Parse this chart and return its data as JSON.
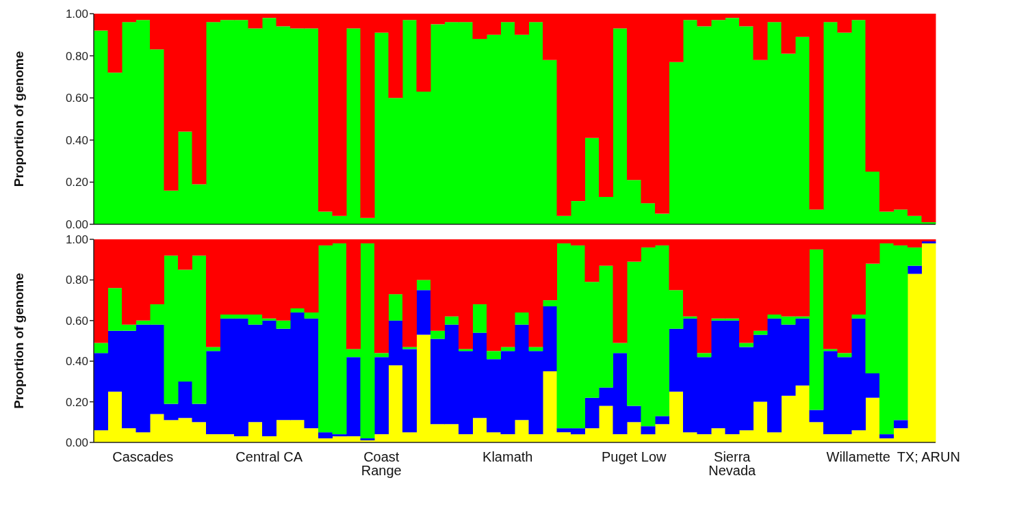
{
  "chart_data": [
    {
      "type": "bar",
      "stacked": true,
      "ylabel": "Proportion of genome",
      "tick_labels": "y",
      "categories": [
        null,
        null,
        null,
        null,
        null,
        null,
        null,
        null,
        null,
        null,
        null,
        null,
        null,
        null,
        null,
        null,
        null,
        null,
        null,
        null,
        null,
        null,
        null,
        null,
        null,
        null,
        null,
        null,
        null,
        null,
        null,
        null,
        null,
        null,
        null,
        null,
        null,
        null,
        null,
        null,
        null,
        null,
        null,
        null,
        null,
        null,
        null,
        null,
        null,
        null,
        null,
        null,
        null,
        null,
        null,
        null,
        null,
        null,
        null,
        null
      ],
      "ylim": [
        0,
        1
      ],
      "yticks": [
        {
          "value": 0,
          "label": "0.00"
        },
        {
          "value": 0.2,
          "label": "0.20"
        },
        {
          "value": 0.4,
          "label": "0.40"
        },
        {
          "value": 0.6,
          "label": "0.60"
        },
        {
          "value": 0.8,
          "label": "0.80"
        },
        {
          "value": 1,
          "label": "1.00"
        }
      ],
      "series": [
        {
          "color": "#00ff00",
          "values": [
            0.92,
            0.72,
            0.96,
            0.97,
            0.83,
            0.16,
            0.44,
            0.19,
            0.96,
            0.97,
            0.97,
            0.93,
            0.98,
            0.94,
            0.93,
            0.93,
            0.06,
            0.04,
            0.93,
            0.03,
            0.91,
            0.6,
            0.97,
            0.63,
            0.95,
            0.96,
            0.96,
            0.88,
            0.9,
            0.96,
            0.9,
            0.96,
            0.78,
            0.04,
            0.11,
            0.41,
            0.13,
            0.93,
            0.21,
            0.1,
            0.05,
            0.77,
            0.97,
            0.94,
            0.97,
            0.98,
            0.94,
            0.78,
            0.96,
            0.81,
            0.89,
            0.07,
            0.96,
            0.91,
            0.97,
            0.25,
            0.06,
            0.07,
            0.04,
            0.01
          ]
        },
        {
          "color": "#ff0000",
          "values": [
            0.08,
            0.28,
            0.04,
            0.03,
            0.17,
            0.84,
            0.56,
            0.81,
            0.04,
            0.03,
            0.03,
            0.07,
            0.02,
            0.06,
            0.07,
            0.07,
            0.94,
            0.96,
            0.07,
            0.97,
            0.09,
            0.4,
            0.03,
            0.37,
            0.05,
            0.04,
            0.04,
            0.12,
            0.1,
            0.04,
            0.1,
            0.04,
            0.22,
            0.96,
            0.89,
            0.59,
            0.87,
            0.07,
            0.79,
            0.9,
            0.95,
            0.23,
            0.03,
            0.06,
            0.03,
            0.02,
            0.06,
            0.22,
            0.04,
            0.19,
            0.11,
            0.93,
            0.04,
            0.09,
            0.03,
            0.75,
            0.94,
            0.93,
            0.96,
            0.99
          ]
        }
      ]
    },
    {
      "type": "bar",
      "stacked": true,
      "ylabel": "Proportion of genome",
      "categories": [
        null,
        null,
        null,
        "Cascades",
        null,
        null,
        null,
        null,
        null,
        null,
        null,
        null,
        "Central CA",
        null,
        null,
        null,
        null,
        null,
        null,
        null,
        "Coast Range",
        null,
        null,
        null,
        null,
        null,
        null,
        null,
        null,
        "Klamath",
        null,
        null,
        null,
        null,
        null,
        null,
        null,
        null,
        "Puget Low",
        null,
        null,
        null,
        null,
        null,
        null,
        "Sierra Nevada",
        null,
        null,
        null,
        null,
        null,
        null,
        null,
        null,
        "Willamette",
        null,
        null,
        null,
        null,
        "TX; ARUN"
      ],
      "ylim": [
        0,
        1
      ],
      "yticks": [
        {
          "value": 0,
          "label": "0.00"
        },
        {
          "value": 0.2,
          "label": "0.20"
        },
        {
          "value": 0.4,
          "label": "0.40"
        },
        {
          "value": 0.6,
          "label": "0.60"
        },
        {
          "value": 0.8,
          "label": "0.80"
        },
        {
          "value": 1,
          "label": "1.00"
        }
      ],
      "series": [
        {
          "color": "#ffff00",
          "values": [
            0.06,
            0.25,
            0.07,
            0.05,
            0.14,
            0.11,
            0.12,
            0.1,
            0.04,
            0.04,
            0.03,
            0.1,
            0.03,
            0.11,
            0.11,
            0.07,
            0.02,
            0.03,
            0.03,
            0.01,
            0.04,
            0.38,
            0.05,
            0.53,
            0.09,
            0.09,
            0.04,
            0.12,
            0.05,
            0.04,
            0.11,
            0.04,
            0.35,
            0.05,
            0.04,
            0.07,
            0.18,
            0.04,
            0.1,
            0.04,
            0.09,
            0.25,
            0.05,
            0.04,
            0.07,
            0.04,
            0.06,
            0.2,
            0.05,
            0.23,
            0.28,
            0.1,
            0.04,
            0.04,
            0.06,
            0.22,
            0.02,
            0.07,
            0.83,
            0.98
          ]
        },
        {
          "color": "#0000ff",
          "values": [
            0.38,
            0.3,
            0.48,
            0.53,
            0.44,
            0.08,
            0.18,
            0.09,
            0.41,
            0.57,
            0.58,
            0.48,
            0.57,
            0.45,
            0.53,
            0.54,
            0.03,
            0.01,
            0.39,
            0.01,
            0.38,
            0.22,
            0.41,
            0.22,
            0.42,
            0.49,
            0.41,
            0.42,
            0.36,
            0.41,
            0.47,
            0.41,
            0.32,
            0.02,
            0.03,
            0.15,
            0.09,
            0.4,
            0.08,
            0.04,
            0.04,
            0.31,
            0.56,
            0.38,
            0.53,
            0.56,
            0.41,
            0.33,
            0.56,
            0.35,
            0.33,
            0.06,
            0.41,
            0.38,
            0.55,
            0.12,
            0.02,
            0.04,
            0.04,
            0.01
          ]
        },
        {
          "color": "#00ff00",
          "values": [
            0.05,
            0.21,
            0.03,
            0.02,
            0.1,
            0.73,
            0.55,
            0.73,
            0.02,
            0.02,
            0.02,
            0.05,
            0.01,
            0.04,
            0.02,
            0.03,
            0.92,
            0.94,
            0.04,
            0.96,
            0.02,
            0.13,
            0.01,
            0.05,
            0.04,
            0.04,
            0.01,
            0.14,
            0.04,
            0.02,
            0.06,
            0.02,
            0.03,
            0.91,
            0.9,
            0.57,
            0.6,
            0.05,
            0.71,
            0.88,
            0.84,
            0.19,
            0.01,
            0.02,
            0.01,
            0.01,
            0.02,
            0.02,
            0.02,
            0.04,
            0.01,
            0.79,
            0.01,
            0.02,
            0.02,
            0.54,
            0.94,
            0.86,
            0.09,
            0
          ]
        },
        {
          "color": "#ff0000",
          "values": [
            0.51,
            0.24,
            0.42,
            0.4,
            0.32,
            0.08,
            0.15,
            0.08,
            0.53,
            0.37,
            0.37,
            0.37,
            0.39,
            0.4,
            0.34,
            0.36,
            0.03,
            0.02,
            0.54,
            0.02,
            0.56,
            0.27,
            0.53,
            0.2,
            0.45,
            0.38,
            0.54,
            0.32,
            0.55,
            0.53,
            0.36,
            0.53,
            0.3,
            0.02,
            0.03,
            0.21,
            0.13,
            0.51,
            0.11,
            0.04,
            0.03,
            0.25,
            0.38,
            0.56,
            0.39,
            0.39,
            0.51,
            0.45,
            0.37,
            0.38,
            0.38,
            0.05,
            0.54,
            0.56,
            0.37,
            0.12,
            0.02,
            0.03,
            0.04,
            0.01
          ]
        }
      ]
    }
  ]
}
